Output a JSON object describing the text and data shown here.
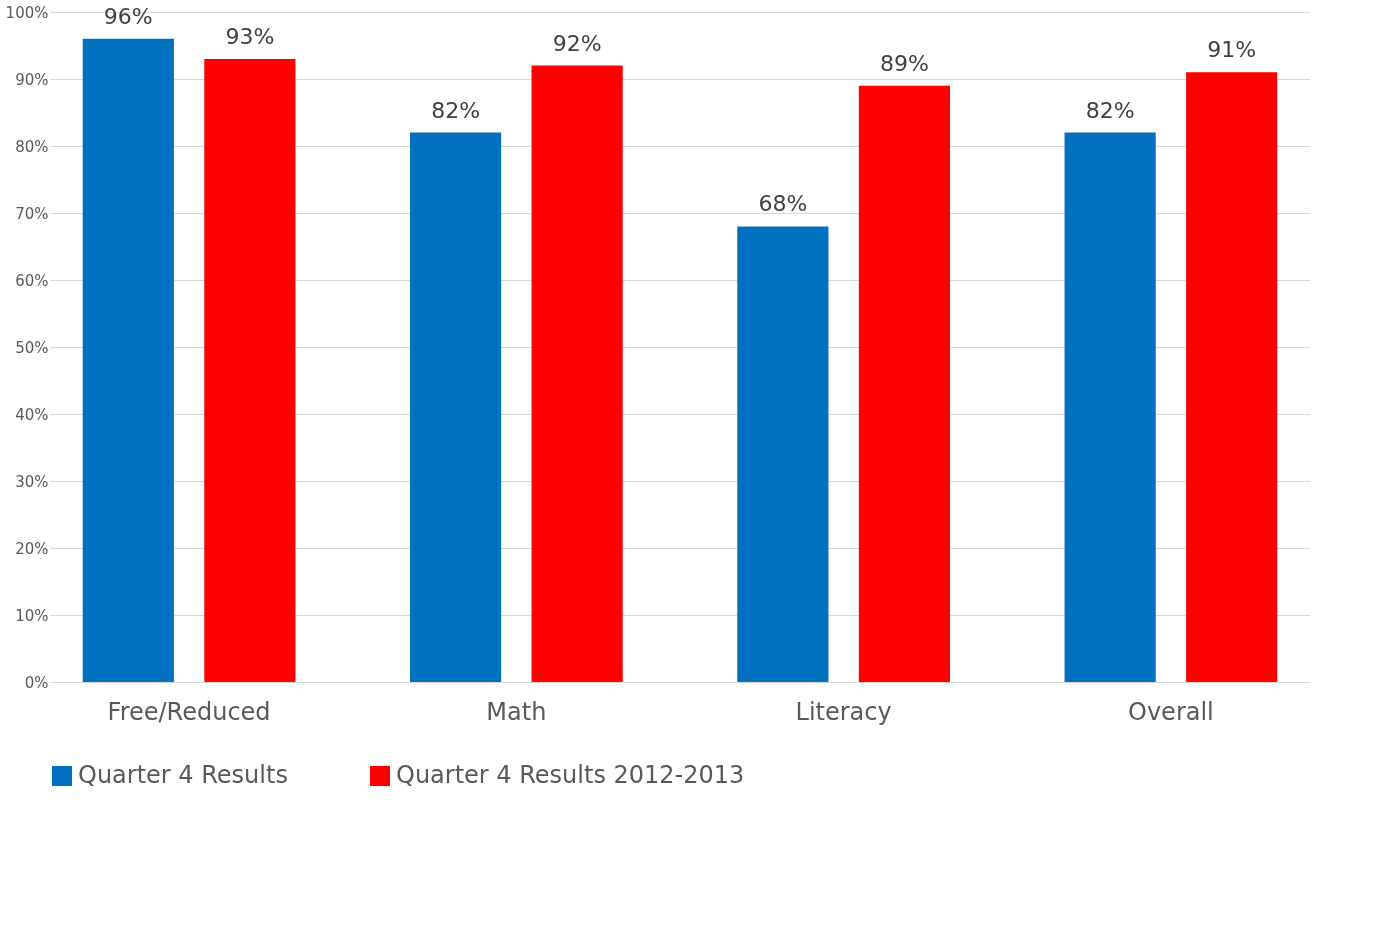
{
  "chart_data": {
    "type": "bar",
    "categories": [
      "Free/Reduced",
      "Math",
      "Literacy",
      "Overall"
    ],
    "series": [
      {
        "name": "Quarter 4 Results",
        "color": "#0070c0",
        "values": [
          96,
          82,
          68,
          82
        ],
        "value_labels": [
          "96%",
          "82%",
          "68%",
          "82%"
        ]
      },
      {
        "name": "Quarter 4 Results 2012-2013",
        "color": "#ff0000",
        "values": [
          93,
          92,
          89,
          91
        ],
        "value_labels": [
          "93%",
          "92%",
          "89%",
          "91%"
        ]
      }
    ],
    "ylim": [
      0,
      100
    ],
    "yticks": [
      {
        "value": 0,
        "label": "0%"
      },
      {
        "value": 10,
        "label": "10%"
      },
      {
        "value": 20,
        "label": "20%"
      },
      {
        "value": 30,
        "label": "30%"
      },
      {
        "value": 40,
        "label": "40%"
      },
      {
        "value": 50,
        "label": "50%"
      },
      {
        "value": 60,
        "label": "60%"
      },
      {
        "value": 70,
        "label": "70%"
      },
      {
        "value": 80,
        "label": "80%"
      },
      {
        "value": 90,
        "label": "90%"
      },
      {
        "value": 100,
        "label": "100%"
      }
    ],
    "grid": "y",
    "legend": "bottom"
  }
}
